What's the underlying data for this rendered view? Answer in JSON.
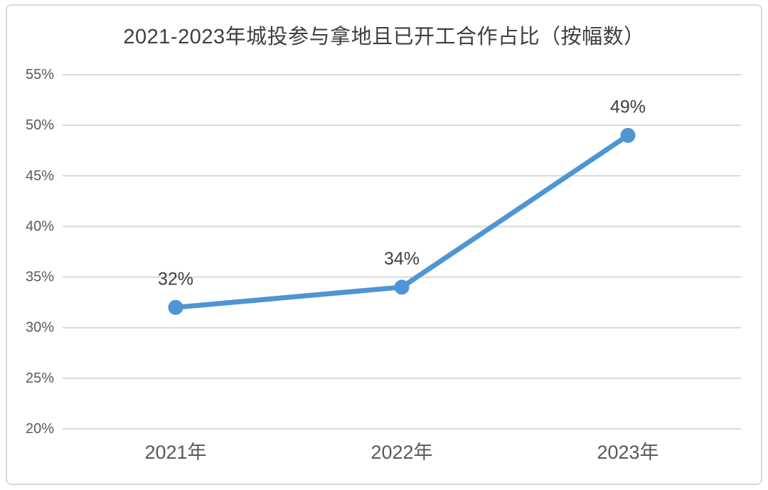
{
  "chart_data": {
    "type": "line",
    "title": "2021-2023年城投参与拿地且已开工合作占比（按幅数）",
    "categories": [
      "2021年",
      "2022年",
      "2023年"
    ],
    "values": [
      32,
      34,
      49
    ],
    "data_labels": [
      "32%",
      "34%",
      "49%"
    ],
    "y_tick_values": [
      55,
      50,
      45,
      40,
      35,
      30,
      25,
      20
    ],
    "y_tick_labels": [
      "55%",
      "50%",
      "45%",
      "40%",
      "35%",
      "30%",
      "25%",
      "20%"
    ],
    "ylim": [
      20,
      55
    ],
    "xlabel": "",
    "ylabel": "",
    "grid": true,
    "legend_position": "none",
    "colors": {
      "line": "#4e95d4",
      "marker": "#4e95d4",
      "grid": "#d9d9d9",
      "tick_text": "#595959",
      "data_label_text": "#404040",
      "title_text": "#3f3f3f",
      "card_border": "#d8d8d8",
      "background": "#ffffff"
    }
  }
}
